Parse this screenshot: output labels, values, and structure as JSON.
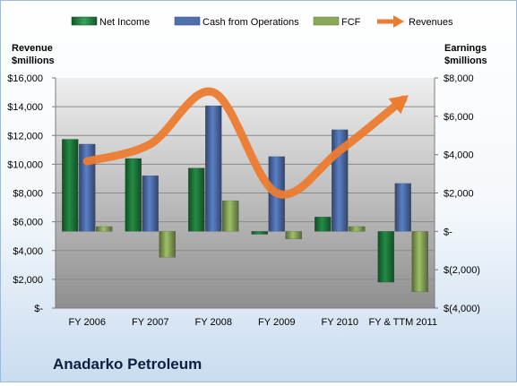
{
  "chart_data": {
    "type": "bar",
    "title": "Anadarko Petroleum",
    "categories": [
      "FY 2006",
      "FY 2007",
      "FY 2008",
      "FY 2009",
      "FY 2010",
      "FY & TTM 2011"
    ],
    "left_axis": {
      "label_line1": "Revenue",
      "label_line2": "$millions",
      "range": [
        0,
        16000
      ],
      "ticks": [
        0,
        2000,
        4000,
        6000,
        8000,
        10000,
        12000,
        14000,
        16000
      ],
      "tick_labels": [
        "$-",
        "$2,000",
        "$4,000",
        "$6,000",
        "$8,000",
        "$10,000",
        "$12,000",
        "$14,000",
        "$16,000"
      ]
    },
    "right_axis": {
      "label_line1": "Earnings",
      "label_line2": "$millions",
      "range": [
        -4000,
        8000
      ],
      "ticks": [
        -4000,
        -2000,
        0,
        2000,
        4000,
        6000,
        8000
      ],
      "tick_labels": [
        "$(4,000)",
        "$(2,000)",
        "$-",
        "$2,000",
        "$4,000",
        "$6,000",
        "$8,000"
      ]
    },
    "series": [
      {
        "name": "Net Income",
        "axis": "right",
        "kind": "bar",
        "color": "#1e7a3c",
        "values": [
          4800,
          3800,
          3300,
          -150,
          750,
          -2650
        ]
      },
      {
        "name": "Cash from Operations",
        "axis": "right",
        "kind": "bar",
        "color": "#4f6fad",
        "values": [
          4550,
          2900,
          6550,
          3900,
          5300,
          2500
        ]
      },
      {
        "name": "FCF",
        "axis": "right",
        "kind": "bar",
        "color": "#8aa85a",
        "values": [
          250,
          -1350,
          1600,
          -400,
          250,
          -3150
        ]
      },
      {
        "name": "Revenues",
        "axis": "left",
        "kind": "line",
        "color": "#ec7c30",
        "values": [
          10200,
          11400,
          15000,
          8000,
          10950,
          14500
        ]
      }
    ],
    "legend_position": "top",
    "grid": true
  }
}
